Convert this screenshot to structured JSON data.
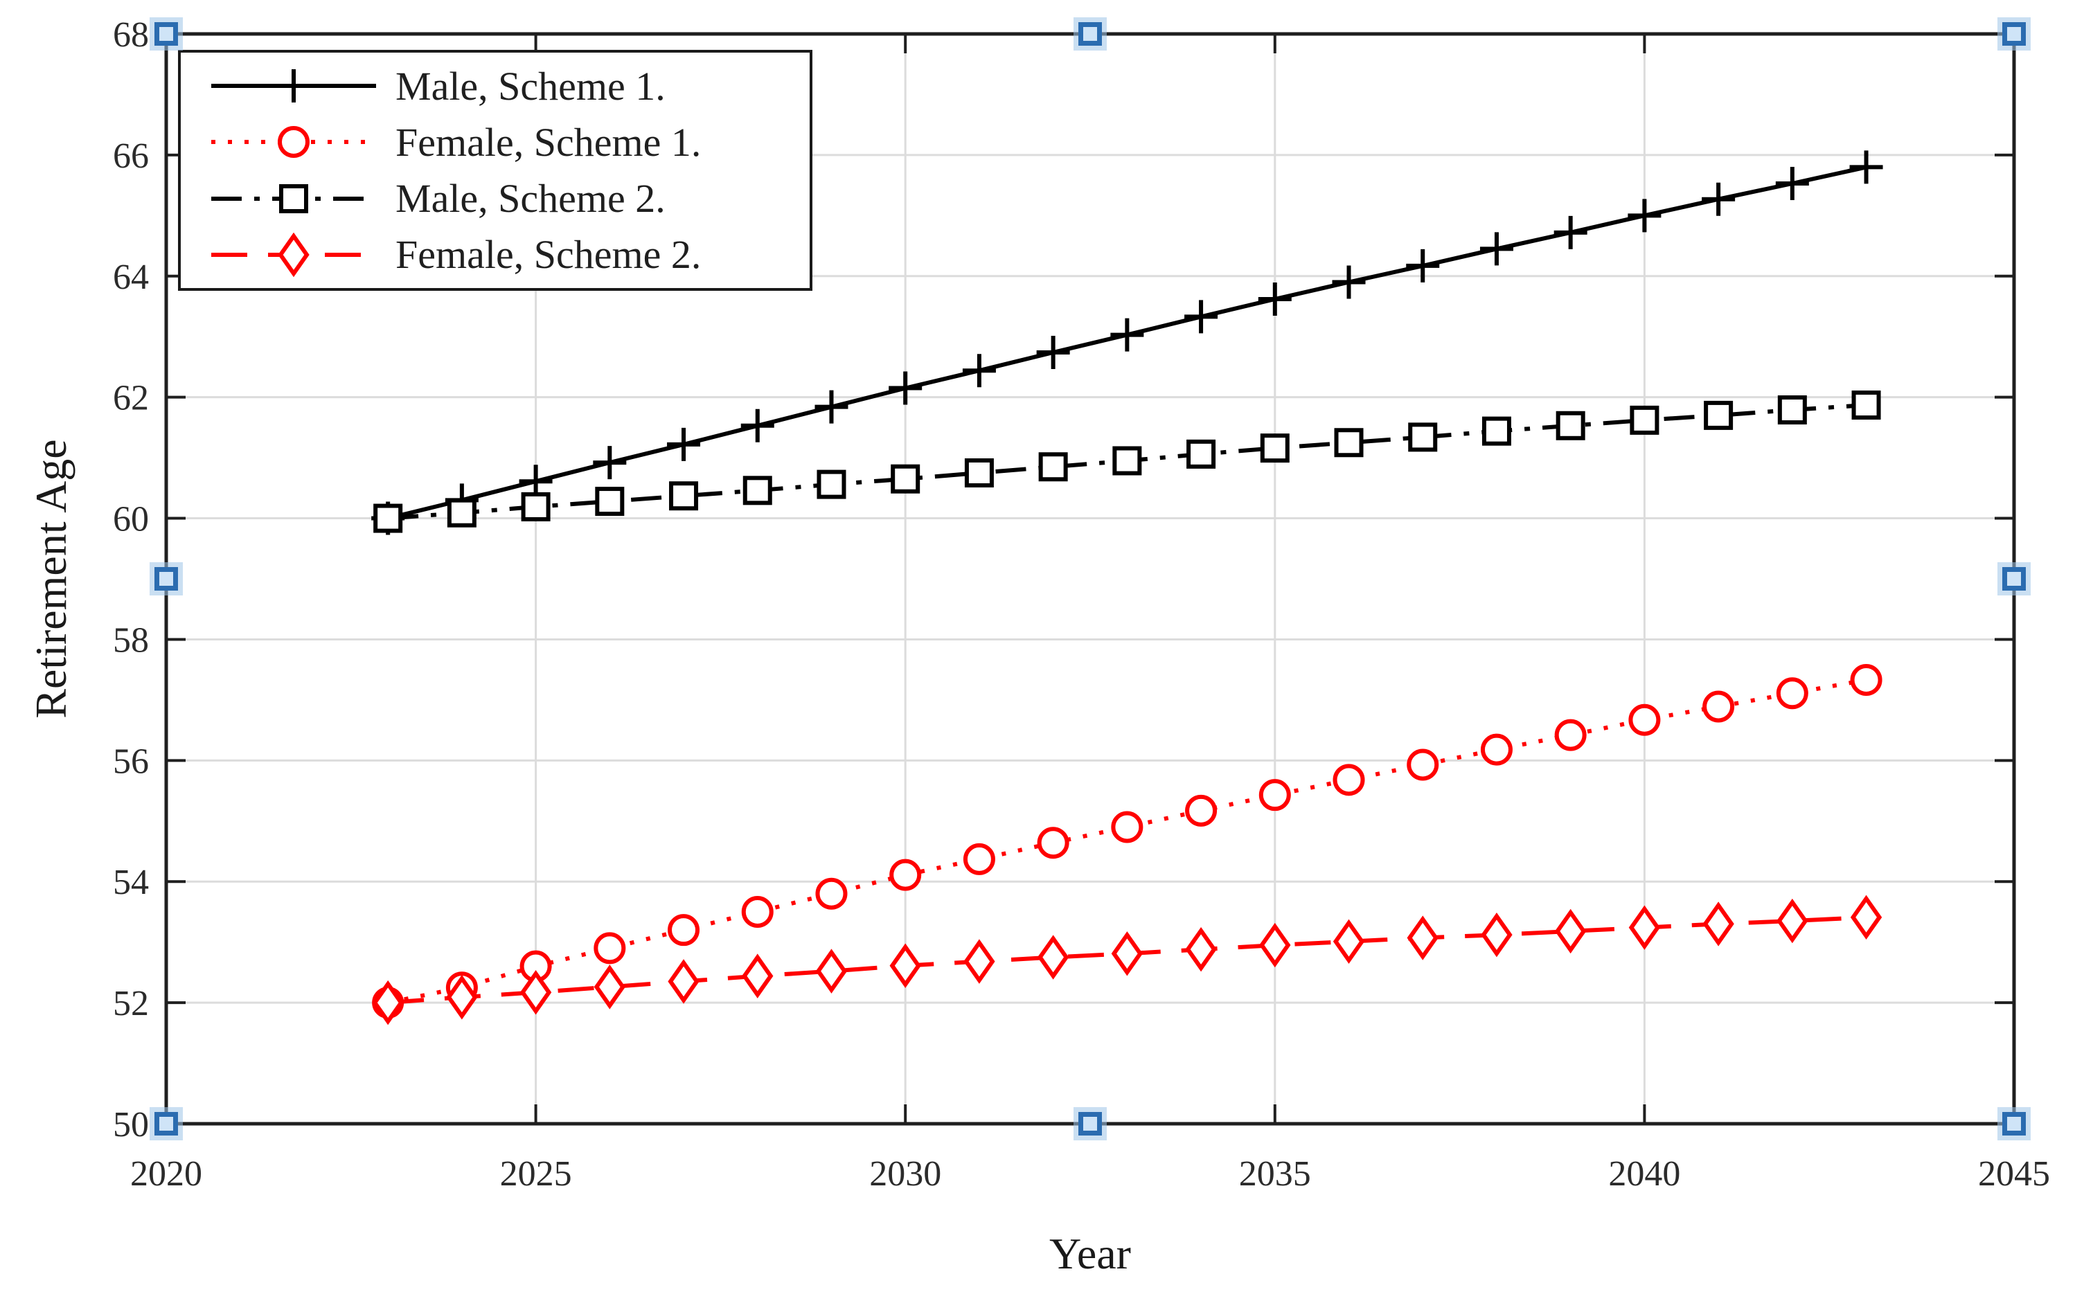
{
  "figure": {
    "background": "#ffffff"
  },
  "chart_data": {
    "type": "line",
    "title": "",
    "xlabel": "Year",
    "ylabel": "Retirement Age",
    "xlim": [
      2020,
      2045
    ],
    "ylim": [
      50,
      68
    ],
    "xticks": [
      2020,
      2025,
      2030,
      2035,
      2040,
      2045
    ],
    "yticks": [
      50,
      52,
      54,
      56,
      58,
      60,
      62,
      64,
      66,
      68
    ],
    "grid": true,
    "legend_position": "top-left",
    "x": [
      2023,
      2024,
      2025,
      2026,
      2027,
      2028,
      2029,
      2030,
      2031,
      2032,
      2033,
      2034,
      2035,
      2036,
      2037,
      2038,
      2039,
      2040,
      2041,
      2042,
      2043
    ],
    "series": [
      {
        "name": "Male, Scheme 1.",
        "color": "#000000",
        "linestyle": "solid",
        "marker": "plus",
        "values": [
          60.0,
          60.3,
          60.61,
          60.92,
          61.22,
          61.53,
          61.84,
          62.15,
          62.44,
          62.74,
          63.03,
          63.33,
          63.62,
          63.9,
          64.17,
          64.45,
          64.72,
          65.0,
          65.27,
          65.53,
          65.8
        ]
      },
      {
        "name": "Female, Scheme 1.",
        "color": "#ff0000",
        "linestyle": "dotted",
        "marker": "circle",
        "values": [
          52.0,
          52.25,
          52.6,
          52.9,
          53.2,
          53.5,
          53.8,
          54.11,
          54.37,
          54.64,
          54.9,
          55.17,
          55.43,
          55.68,
          55.93,
          56.18,
          56.42,
          56.67,
          56.89,
          57.11,
          57.33
        ]
      },
      {
        "name": "Male, Scheme 2.",
        "color": "#000000",
        "linestyle": "dashdot",
        "marker": "square",
        "values": [
          60.0,
          60.09,
          60.19,
          60.28,
          60.37,
          60.46,
          60.56,
          60.65,
          60.75,
          60.85,
          60.95,
          61.06,
          61.16,
          61.25,
          61.34,
          61.44,
          61.53,
          61.62,
          61.7,
          61.79,
          61.87
        ]
      },
      {
        "name": "Female, Scheme 2.",
        "color": "#ff0000",
        "linestyle": "dashed",
        "marker": "diamond",
        "values": [
          52.0,
          52.09,
          52.17,
          52.26,
          52.35,
          52.44,
          52.52,
          52.61,
          52.68,
          52.75,
          52.81,
          52.88,
          52.95,
          53.01,
          53.07,
          53.12,
          53.18,
          53.24,
          53.3,
          53.35,
          53.41
        ]
      }
    ]
  },
  "colors": {
    "axis": "#1f1f1f",
    "grid": "#dcdcdc",
    "tick_label": "#2b2b2b",
    "handle_border": "#2b6cb0",
    "handle_fill": "#cfe4f7"
  },
  "selection_handles": [
    {
      "name": "top-left"
    },
    {
      "name": "top-center"
    },
    {
      "name": "top-right"
    },
    {
      "name": "middle-left"
    },
    {
      "name": "middle-right"
    },
    {
      "name": "bottom-left"
    },
    {
      "name": "bottom-center"
    },
    {
      "name": "bottom-right"
    }
  ]
}
